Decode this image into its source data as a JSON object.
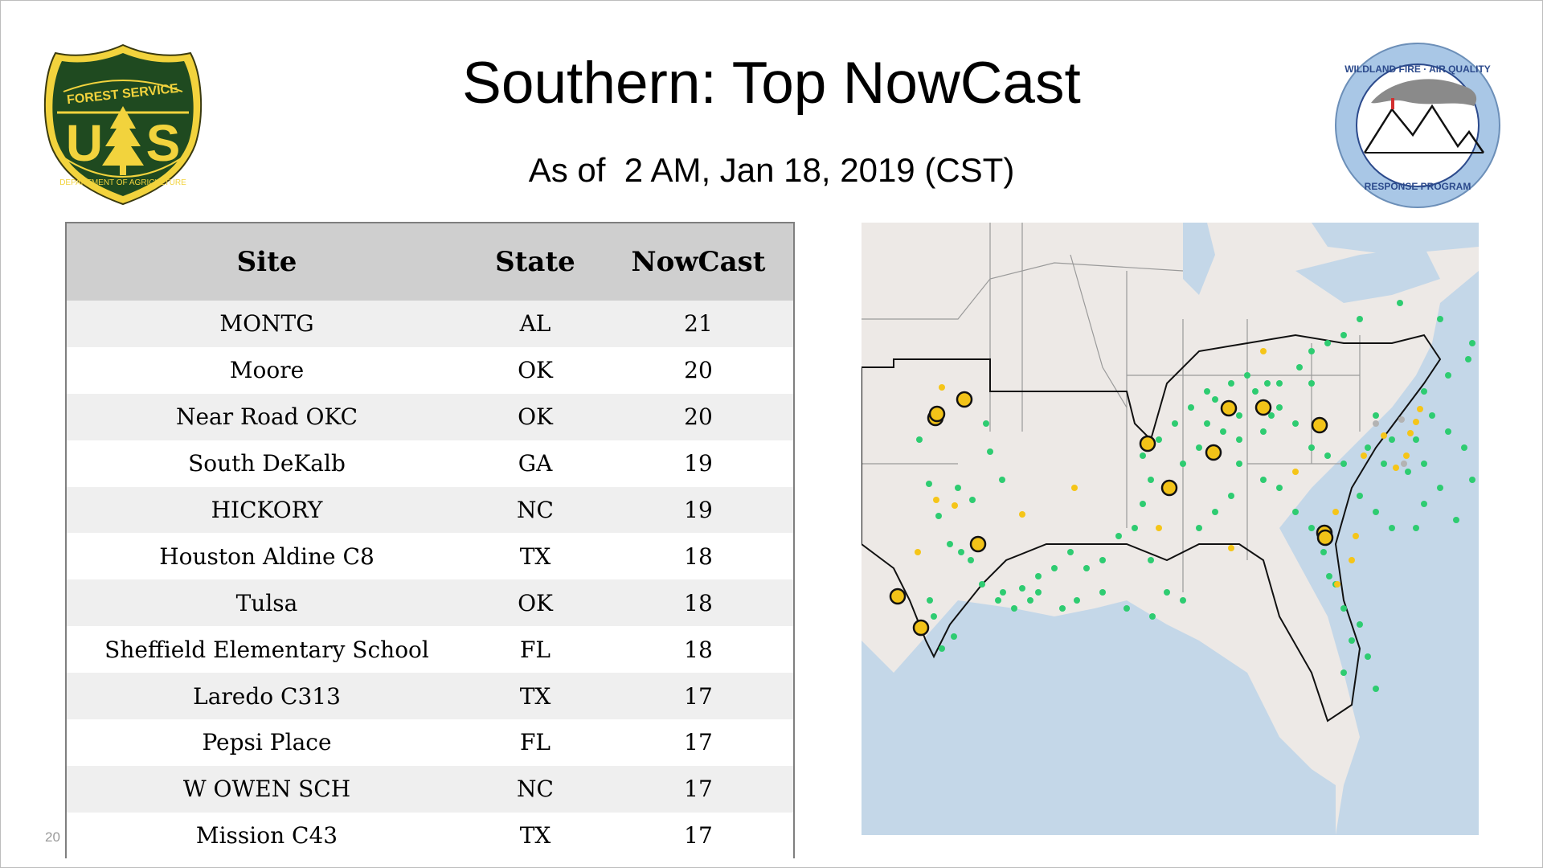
{
  "header": {
    "title": "Southern: Top NowCast",
    "subtitle": "As of  2 AM, Jan 18, 2019 (CST)"
  },
  "logos": {
    "forest_service": {
      "top_text": "FOREST SERVICE",
      "letters": "US",
      "bottom_text": "DEPARTMENT OF AGRICULTURE",
      "colors": {
        "field": "#1f4a20",
        "gold": "#f2d33d"
      }
    },
    "wildland_fire": {
      "top_text": "WILDLAND FIRE · AIR QUALITY",
      "bottom_text": "RESPONSE PROGRAM",
      "colors": {
        "ring": "#a9c7e6",
        "text": "#2c4a8c"
      }
    }
  },
  "table": {
    "headers": {
      "site": "Site",
      "state": "State",
      "nowcast": "NowCast"
    },
    "rows": [
      {
        "site": "MONTG",
        "state": "AL",
        "nowcast": "21"
      },
      {
        "site": "Moore",
        "state": "OK",
        "nowcast": "20"
      },
      {
        "site": "Near Road OKC",
        "state": "OK",
        "nowcast": "20"
      },
      {
        "site": "South DeKalb",
        "state": "GA",
        "nowcast": "19"
      },
      {
        "site": "HICKORY",
        "state": "NC",
        "nowcast": "19"
      },
      {
        "site": "Houston Aldine C8",
        "state": "TX",
        "nowcast": "18"
      },
      {
        "site": "Tulsa",
        "state": "OK",
        "nowcast": "18"
      },
      {
        "site": "Sheffield Elementary School",
        "state": "FL",
        "nowcast": "18"
      },
      {
        "site": "Laredo C313",
        "state": "TX",
        "nowcast": "17"
      },
      {
        "site": "Pepsi Place",
        "state": "FL",
        "nowcast": "17"
      },
      {
        "site": "W OWEN SCH",
        "state": "NC",
        "nowcast": "17"
      },
      {
        "site": "Mission C43",
        "state": "TX",
        "nowcast": "17"
      }
    ]
  },
  "page_number": "20",
  "map": {
    "colors": {
      "land": "#ede9e6",
      "water": "#c4d7e8",
      "border": "#9a9a9a",
      "region_outline": "#111111",
      "good": "#2ecc71",
      "moderate": "#f5c518",
      "top_site": "#f2c318",
      "no_data": "#b3b3b3"
    },
    "legend_levels": [
      "good",
      "moderate",
      "top_site",
      "no_data"
    ]
  }
}
